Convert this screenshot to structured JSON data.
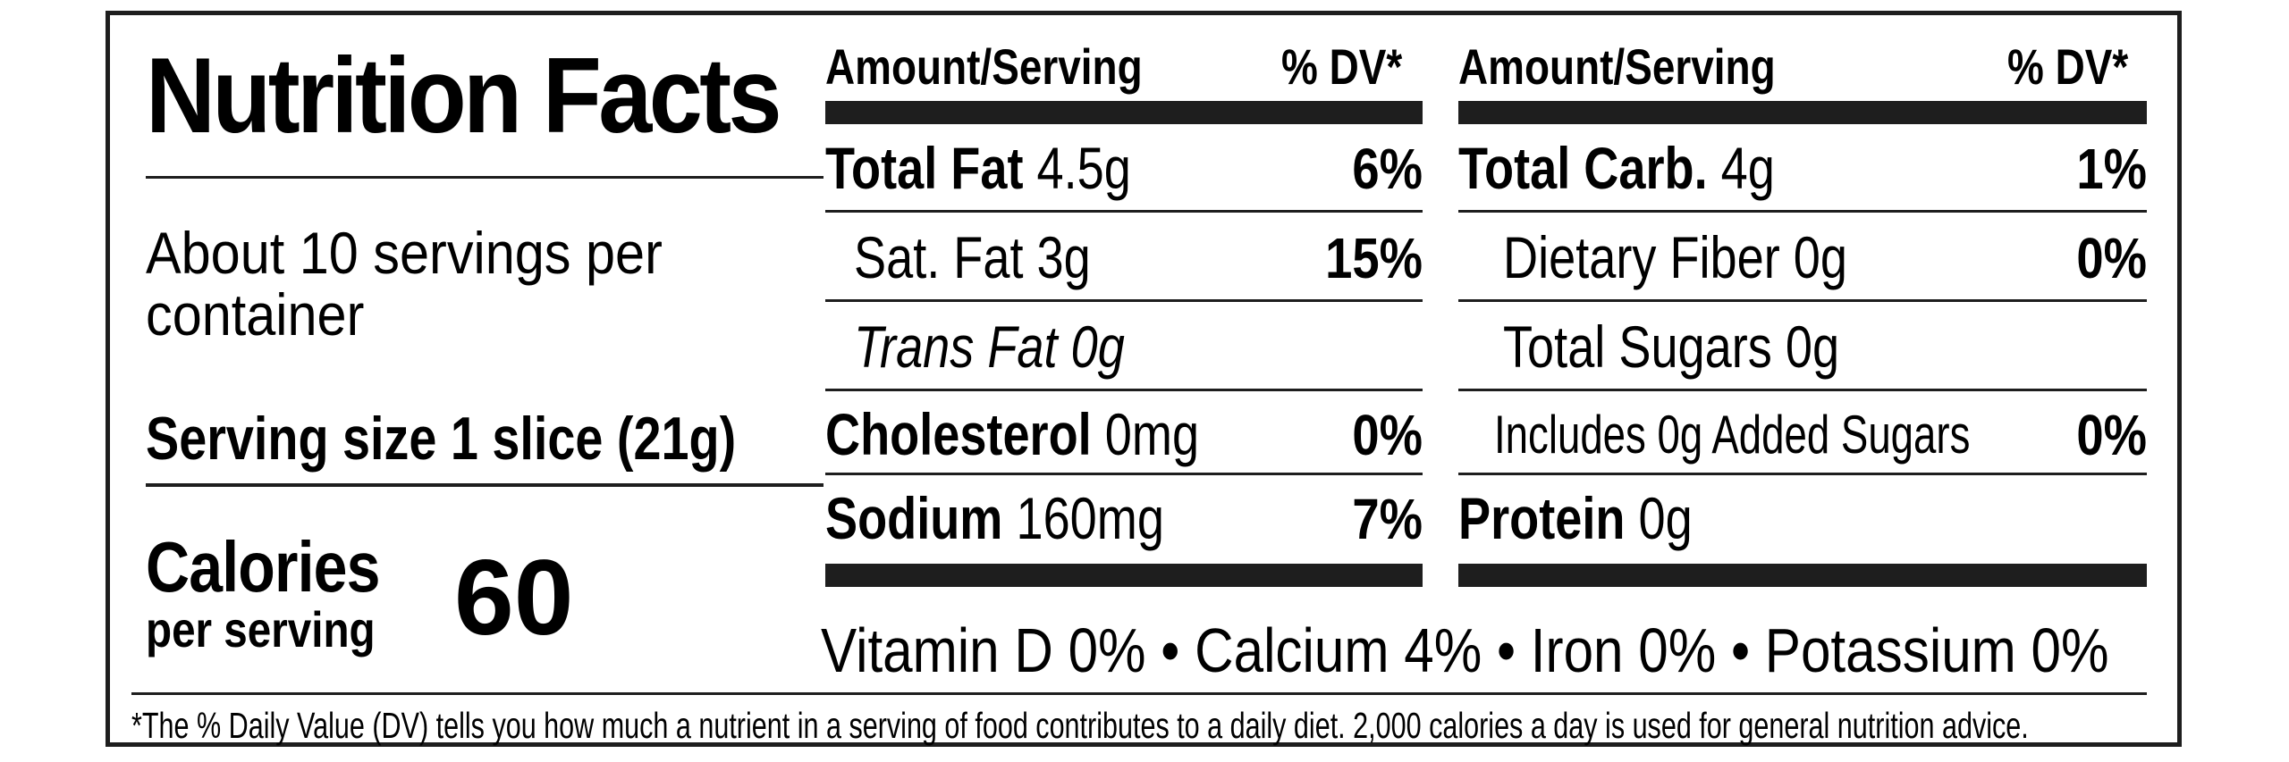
{
  "title": "Nutrition Facts",
  "servings": {
    "per_container_line1": "About 10 servings per",
    "per_container_line2": "container",
    "serving_size": "Serving size 1 slice (21g)"
  },
  "calories": {
    "label": "Calories",
    "sublabel": "per serving",
    "value": "60"
  },
  "headers": {
    "amount": "Amount/Serving",
    "dv": "% DV*"
  },
  "left_column": [
    {
      "name": "Total Fat",
      "amount": " 4.5g",
      "dv": "6%"
    },
    {
      "name": "",
      "amount": "Sat. Fat 3g",
      "dv": "15%"
    },
    {
      "name": "",
      "amount": "Trans Fat 0g",
      "dv": ""
    },
    {
      "name": "Cholesterol",
      "amount": " 0mg",
      "dv": "0%"
    },
    {
      "name": "Sodium",
      "amount": " 160mg",
      "dv": "7%"
    }
  ],
  "right_column": [
    {
      "name": "Total Carb.",
      "amount": " 4g",
      "dv": "1%"
    },
    {
      "name": "",
      "amount": "Dietary Fiber 0g",
      "dv": "0%"
    },
    {
      "name": "",
      "amount": "Total Sugars 0g",
      "dv": ""
    },
    {
      "name": "",
      "amount": "Includes 0g Added Sugars",
      "dv": "0%"
    },
    {
      "name": "Protein",
      "amount": " 0g",
      "dv": ""
    }
  ],
  "vitamins": "Vitamin D 0% • Calcium 4% • Iron 0% • Potassium 0%",
  "footnote": "*The % Daily Value (DV) tells you how much a nutrient in a serving of food contributes to a daily diet. 2,000 calories a day is used for general nutrition advice."
}
